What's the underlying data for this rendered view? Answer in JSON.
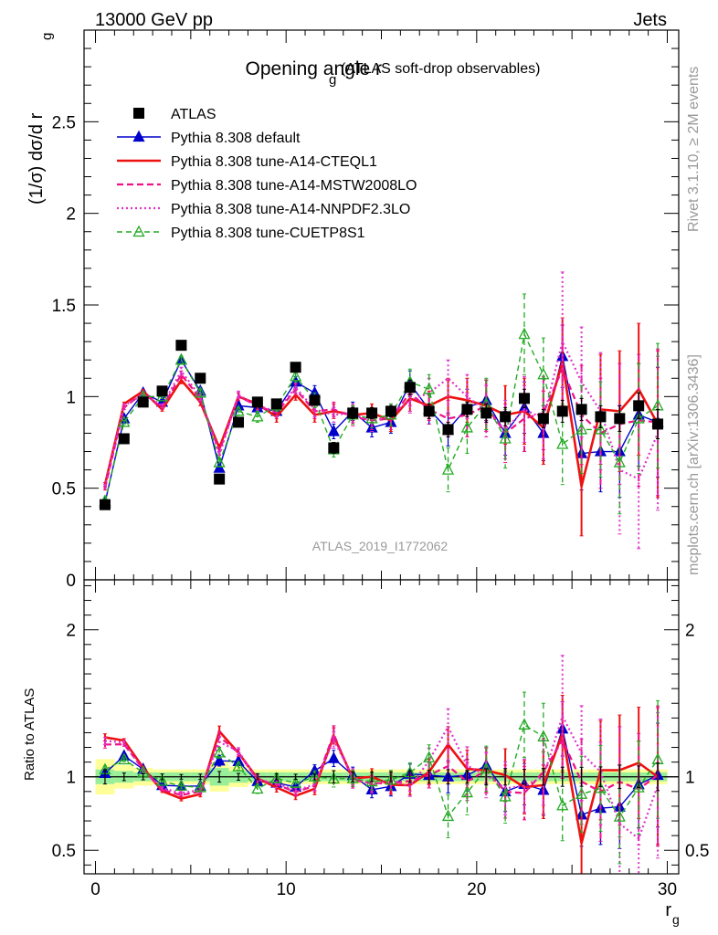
{
  "header": {
    "left": "13000 GeV pp",
    "right": "Jets"
  },
  "side_labels": {
    "rivet": "Rivet 3.1.10, ≥ 2M events",
    "mcplots": "mcplots.cern.ch [arXiv:1306.3436]"
  },
  "chart_data": [
    {
      "type": "scatter",
      "title": "Opening angle r",
      "title_sub": "g",
      "title_suffix": "(ATLAS soft-drop observables)",
      "watermark": "ATLAS_2019_I1772062",
      "ylabel": "(1/σ) dσ/d r",
      "ylabel_sub": "g",
      "xlim": [
        -0.6,
        30.6
      ],
      "ylim": [
        0,
        3.0
      ],
      "y_ticks": [
        "0",
        "0.5",
        "1",
        "1.5",
        "2",
        "2.5"
      ],
      "x": [
        0.5,
        1.5,
        2.5,
        3.5,
        4.5,
        5.5,
        6.5,
        7.5,
        8.5,
        9.5,
        10.5,
        11.5,
        12.5,
        13.5,
        14.5,
        15.5,
        16.5,
        17.5,
        18.5,
        19.5,
        20.5,
        21.5,
        22.5,
        23.5,
        24.5,
        25.5,
        26.5,
        27.5,
        28.5,
        29.5
      ],
      "series": [
        {
          "name": "ATLAS",
          "style": "data",
          "color": "#000000",
          "values": [
            0.41,
            0.77,
            0.97,
            1.03,
            1.28,
            1.1,
            0.55,
            0.86,
            0.97,
            0.96,
            1.16,
            0.98,
            0.72,
            0.91,
            0.91,
            0.92,
            1.05,
            0.92,
            0.82,
            0.93,
            0.91,
            0.89,
            0.99,
            0.88,
            0.92,
            0.93,
            0.89,
            0.88,
            0.95,
            0.85
          ],
          "errors": [
            0.02,
            0.02,
            0.02,
            0.02,
            0.02,
            0.02,
            0.02,
            0.02,
            0.02,
            0.02,
            0.02,
            0.02,
            0.03,
            0.03,
            0.03,
            0.03,
            0.04,
            0.04,
            0.04,
            0.04,
            0.05,
            0.05,
            0.05,
            0.05,
            0.06,
            0.06,
            0.06,
            0.07,
            0.07,
            0.08
          ]
        },
        {
          "name": "Pythia 8.308 default",
          "style": "default",
          "color": "#0000cc",
          "values": [
            0.42,
            0.88,
            1.02,
            0.97,
            1.2,
            1.03,
            0.61,
            0.95,
            0.94,
            0.92,
            1.08,
            1.02,
            0.81,
            0.92,
            0.83,
            0.86,
            1.07,
            0.93,
            0.82,
            0.94,
            0.98,
            0.8,
            0.94,
            0.8,
            1.22,
            0.69,
            0.7,
            0.7,
            0.9,
            0.86
          ],
          "errors": [
            0.01,
            0.01,
            0.01,
            0.01,
            0.02,
            0.02,
            0.02,
            0.02,
            0.03,
            0.03,
            0.03,
            0.04,
            0.04,
            0.05,
            0.05,
            0.06,
            0.07,
            0.08,
            0.09,
            0.1,
            0.11,
            0.12,
            0.14,
            0.15,
            0.17,
            0.2,
            0.22,
            0.25,
            0.28,
            0.3
          ]
        },
        {
          "name": "Pythia 8.308 tune-A14-CTEQL1",
          "style": "cteql1",
          "color": "#ee1111",
          "values": [
            0.52,
            0.96,
            1.03,
            0.93,
            1.09,
            0.97,
            0.72,
            1.0,
            0.96,
            0.89,
            1.01,
            0.9,
            0.92,
            0.9,
            0.91,
            0.87,
            0.99,
            0.95,
            1.0,
            0.98,
            0.95,
            0.9,
            0.92,
            0.83,
            1.19,
            0.51,
            0.93,
            0.92,
            1.04,
            0.85
          ],
          "errors": [
            0.01,
            0.01,
            0.01,
            0.01,
            0.02,
            0.02,
            0.02,
            0.02,
            0.03,
            0.03,
            0.03,
            0.04,
            0.04,
            0.05,
            0.05,
            0.06,
            0.07,
            0.08,
            0.1,
            0.12,
            0.14,
            0.16,
            0.18,
            0.2,
            0.24,
            0.27,
            0.3,
            0.33,
            0.36,
            0.4
          ]
        },
        {
          "name": "Pythia 8.308 tune-A14-MSTW2008LO",
          "style": "mstw",
          "color": "#ee1188",
          "values": [
            0.5,
            0.94,
            1.02,
            0.94,
            1.12,
            0.99,
            0.7,
            1.0,
            0.95,
            0.91,
            1.04,
            0.92,
            0.93,
            0.89,
            0.87,
            0.88,
            1.02,
            0.93,
            0.88,
            0.9,
            0.95,
            0.8,
            0.88,
            0.91,
            1.15,
            0.9,
            0.8,
            0.85,
            0.87,
            0.86
          ],
          "errors": [
            0.01,
            0.01,
            0.01,
            0.01,
            0.02,
            0.02,
            0.02,
            0.02,
            0.03,
            0.03,
            0.03,
            0.04,
            0.04,
            0.05,
            0.05,
            0.06,
            0.07,
            0.08,
            0.1,
            0.12,
            0.14,
            0.16,
            0.18,
            0.2,
            0.24,
            0.27,
            0.3,
            0.33,
            0.36,
            0.4
          ]
        },
        {
          "name": "Pythia 8.308 tune-A14-NNPDF2.3LO",
          "style": "nnpdf",
          "color": "#dd33cc",
          "values": [
            0.51,
            0.95,
            1.01,
            0.95,
            1.14,
            1.0,
            0.68,
            1.01,
            0.95,
            0.92,
            1.05,
            0.93,
            0.9,
            0.91,
            0.86,
            0.9,
            0.98,
            1.02,
            1.1,
            1.0,
            0.92,
            0.82,
            0.93,
            0.88,
            1.3,
            1.08,
            0.92,
            0.6,
            0.55,
            0.8
          ],
          "errors": [
            0.01,
            0.01,
            0.01,
            0.01,
            0.02,
            0.02,
            0.02,
            0.02,
            0.03,
            0.03,
            0.03,
            0.04,
            0.04,
            0.05,
            0.05,
            0.06,
            0.07,
            0.08,
            0.1,
            0.12,
            0.14,
            0.16,
            0.18,
            0.22,
            0.38,
            0.3,
            0.32,
            0.35,
            0.38,
            0.42
          ]
        },
        {
          "name": "Pythia 8.308 tune-CUETP8S1",
          "style": "cuetp",
          "color": "#22aa22",
          "values": [
            0.43,
            0.86,
            1.0,
            1.0,
            1.2,
            1.02,
            0.64,
            0.92,
            0.89,
            0.95,
            1.11,
            0.98,
            0.71,
            0.9,
            0.88,
            0.9,
            1.08,
            1.04,
            0.6,
            0.83,
            0.96,
            0.77,
            1.34,
            1.12,
            0.74,
            0.82,
            0.82,
            0.64,
            0.88,
            0.95
          ],
          "errors": [
            0.01,
            0.01,
            0.01,
            0.01,
            0.02,
            0.02,
            0.02,
            0.02,
            0.03,
            0.03,
            0.03,
            0.04,
            0.04,
            0.05,
            0.05,
            0.06,
            0.07,
            0.08,
            0.12,
            0.14,
            0.14,
            0.16,
            0.22,
            0.2,
            0.22,
            0.24,
            0.26,
            0.28,
            0.3,
            0.34
          ]
        }
      ]
    },
    {
      "type": "scatter",
      "ylabel": "Ratio to ATLAS",
      "xlabel": "r",
      "xlabel_sub": "g",
      "xlim": [
        -0.6,
        30.6
      ],
      "ylim": [
        0.34,
        2.34
      ],
      "y_ticks": [
        "0.5",
        "1",
        "2"
      ],
      "x_ticks": [
        "0",
        "10",
        "20",
        "30"
      ],
      "reference": 1.0,
      "band_inner": [
        0.05,
        0.04,
        0.03,
        0.03,
        0.03,
        0.03,
        0.06,
        0.04,
        0.03,
        0.03,
        0.03,
        0.03,
        0.03,
        0.03,
        0.03,
        0.03,
        0.03,
        0.03,
        0.03,
        0.03,
        0.03,
        0.03,
        0.03,
        0.03,
        0.03,
        0.03,
        0.03,
        0.03,
        0.03,
        0.03
      ],
      "band_outer": [
        0.12,
        0.08,
        0.06,
        0.05,
        0.05,
        0.05,
        0.1,
        0.07,
        0.05,
        0.05,
        0.05,
        0.05,
        0.05,
        0.05,
        0.05,
        0.05,
        0.05,
        0.05,
        0.05,
        0.05,
        0.05,
        0.05,
        0.05,
        0.05,
        0.05,
        0.05,
        0.05,
        0.05,
        0.05,
        0.05
      ]
    }
  ]
}
